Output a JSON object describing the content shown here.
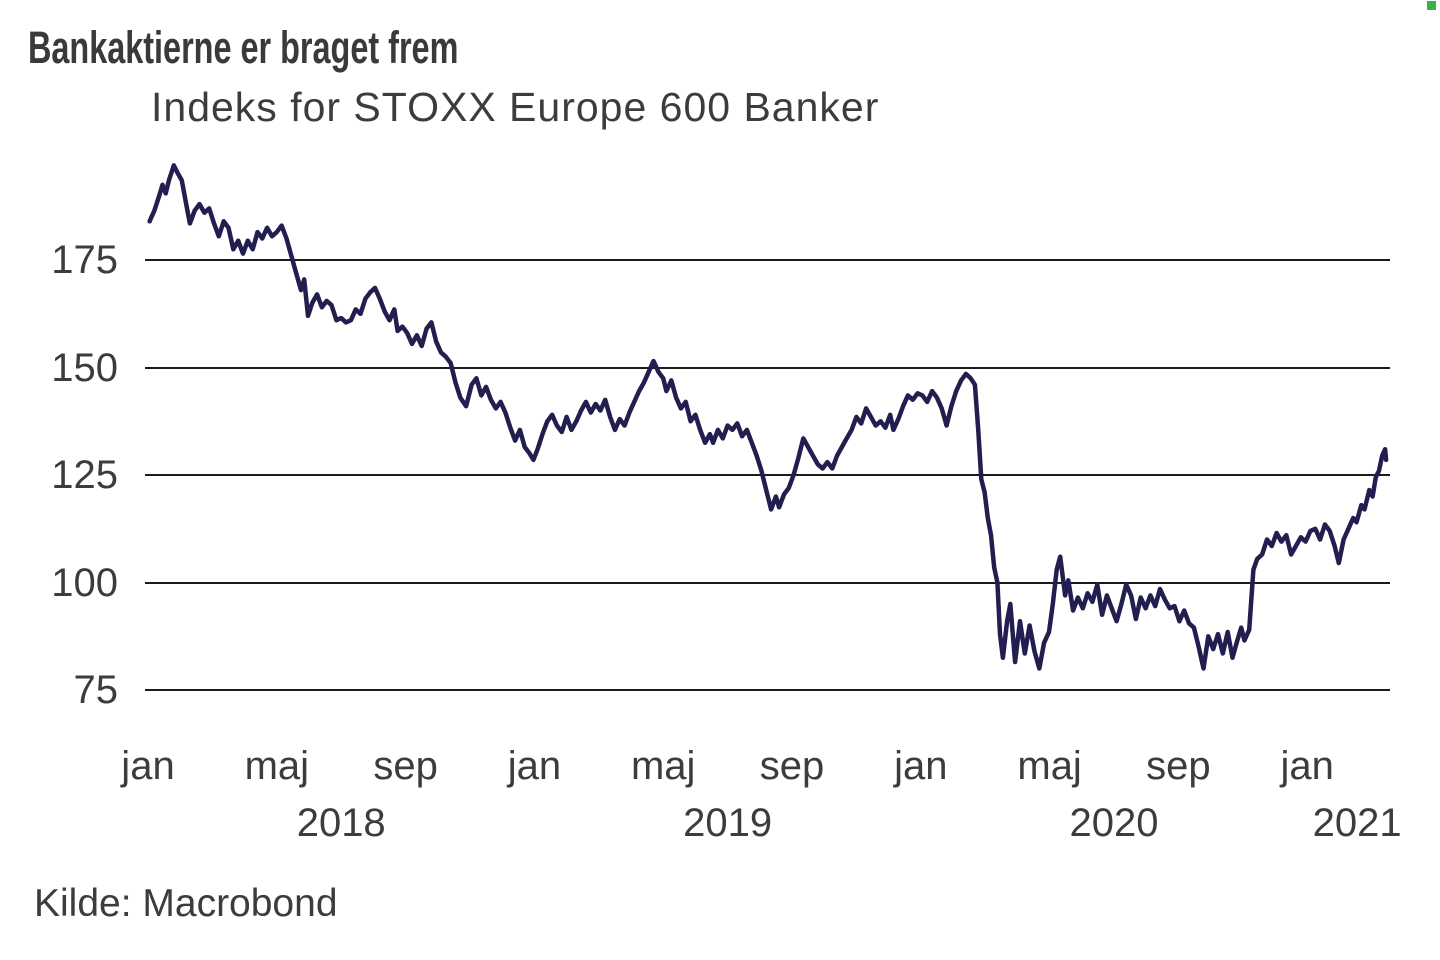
{
  "colors": {
    "background": "#ffffff",
    "line": "#221e4f",
    "grid": "#1b1b1b",
    "text": "#3c3c3c",
    "corner_dot": "#3fae49"
  },
  "chart_data": {
    "type": "line",
    "title": "Bankaktierne er braget frem",
    "subtitle": "Indeks for STOXX Europe 600 Banker",
    "source": "Kilde: Macrobond",
    "xlabel": "",
    "ylabel": "",
    "grid": "horizontal-only",
    "legend": "none",
    "x_unit": "months since 2018-01-01",
    "x_start": "2018-01",
    "x_end": "2021-03",
    "x_range_months": [
      0,
      38.45
    ],
    "ylim": [
      75,
      200
    ],
    "y_ticks": [
      175,
      150,
      125,
      100,
      75
    ],
    "x_ticks": [
      {
        "label": "jan",
        "m": 0
      },
      {
        "label": "maj",
        "m": 4
      },
      {
        "label": "sep",
        "m": 8
      },
      {
        "label": "jan",
        "m": 12
      },
      {
        "label": "maj",
        "m": 16
      },
      {
        "label": "sep",
        "m": 20
      },
      {
        "label": "jan",
        "m": 24
      },
      {
        "label": "maj",
        "m": 28
      },
      {
        "label": "sep",
        "m": 32
      },
      {
        "label": "jan",
        "m": 36
      }
    ],
    "year_labels": [
      {
        "label": "2018",
        "m": 6
      },
      {
        "label": "2019",
        "m": 18
      },
      {
        "label": "2020",
        "m": 30
      },
      {
        "label": "2021",
        "m": 37.55
      }
    ],
    "series": [
      {
        "name": "STOXX Europe 600 Banker (indeks)",
        "color": "#221e4f",
        "points": [
          [
            0.05,
            184
          ],
          [
            0.2,
            186.5
          ],
          [
            0.35,
            190
          ],
          [
            0.45,
            192.5
          ],
          [
            0.55,
            190.5
          ],
          [
            0.65,
            193.5
          ],
          [
            0.8,
            197
          ],
          [
            0.9,
            195.5
          ],
          [
            1.05,
            193.5
          ],
          [
            1.2,
            187.5
          ],
          [
            1.3,
            183.5
          ],
          [
            1.45,
            186.5
          ],
          [
            1.6,
            188
          ],
          [
            1.75,
            186
          ],
          [
            1.9,
            187
          ],
          [
            2.05,
            183.5
          ],
          [
            2.2,
            180.5
          ],
          [
            2.35,
            184
          ],
          [
            2.5,
            182.5
          ],
          [
            2.65,
            177.5
          ],
          [
            2.8,
            179.5
          ],
          [
            2.95,
            176.5
          ],
          [
            3.1,
            179.5
          ],
          [
            3.25,
            177.5
          ],
          [
            3.4,
            181.5
          ],
          [
            3.55,
            180
          ],
          [
            3.7,
            182.5
          ],
          [
            3.85,
            180.5
          ],
          [
            4.0,
            181.5
          ],
          [
            4.15,
            183
          ],
          [
            4.3,
            180
          ],
          [
            4.45,
            176
          ],
          [
            4.6,
            172
          ],
          [
            4.75,
            168
          ],
          [
            4.85,
            170.5
          ],
          [
            4.97,
            162
          ],
          [
            5.1,
            165
          ],
          [
            5.25,
            167
          ],
          [
            5.4,
            164
          ],
          [
            5.55,
            165.5
          ],
          [
            5.7,
            164.5
          ],
          [
            5.85,
            161
          ],
          [
            6.0,
            161.5
          ],
          [
            6.15,
            160.5
          ],
          [
            6.3,
            161
          ],
          [
            6.45,
            163.5
          ],
          [
            6.6,
            162.5
          ],
          [
            6.75,
            166
          ],
          [
            6.9,
            167.5
          ],
          [
            7.05,
            168.5
          ],
          [
            7.2,
            166
          ],
          [
            7.35,
            163
          ],
          [
            7.5,
            161
          ],
          [
            7.65,
            163.5
          ],
          [
            7.75,
            158.5
          ],
          [
            7.9,
            159.5
          ],
          [
            8.05,
            158
          ],
          [
            8.2,
            155.5
          ],
          [
            8.35,
            157.5
          ],
          [
            8.5,
            155
          ],
          [
            8.65,
            159
          ],
          [
            8.8,
            160.5
          ],
          [
            8.95,
            156
          ],
          [
            9.1,
            153.5
          ],
          [
            9.25,
            152.5
          ],
          [
            9.4,
            151
          ],
          [
            9.55,
            146.5
          ],
          [
            9.7,
            143
          ],
          [
            9.88,
            141
          ],
          [
            10.05,
            146
          ],
          [
            10.2,
            147.5
          ],
          [
            10.35,
            143.5
          ],
          [
            10.5,
            145.5
          ],
          [
            10.65,
            142.5
          ],
          [
            10.8,
            140.5
          ],
          [
            10.95,
            142
          ],
          [
            11.1,
            139.5
          ],
          [
            11.25,
            136
          ],
          [
            11.4,
            133
          ],
          [
            11.55,
            135.5
          ],
          [
            11.7,
            131.5
          ],
          [
            11.85,
            130
          ],
          [
            11.97,
            128.5
          ],
          [
            12.1,
            131
          ],
          [
            12.25,
            134.5
          ],
          [
            12.4,
            137.5
          ],
          [
            12.55,
            139
          ],
          [
            12.7,
            136.5
          ],
          [
            12.85,
            135
          ],
          [
            13.0,
            138.5
          ],
          [
            13.15,
            135.5
          ],
          [
            13.3,
            137.5
          ],
          [
            13.45,
            140
          ],
          [
            13.6,
            142
          ],
          [
            13.75,
            139.5
          ],
          [
            13.9,
            141.5
          ],
          [
            14.05,
            140
          ],
          [
            14.2,
            142.5
          ],
          [
            14.35,
            138.5
          ],
          [
            14.5,
            135.5
          ],
          [
            14.65,
            138
          ],
          [
            14.8,
            136.5
          ],
          [
            14.95,
            139.5
          ],
          [
            15.1,
            142
          ],
          [
            15.25,
            144.5
          ],
          [
            15.4,
            146.5
          ],
          [
            15.55,
            149
          ],
          [
            15.7,
            151.5
          ],
          [
            15.85,
            149
          ],
          [
            16.0,
            147.5
          ],
          [
            16.1,
            144.5
          ],
          [
            16.25,
            147
          ],
          [
            16.4,
            143
          ],
          [
            16.55,
            140.5
          ],
          [
            16.7,
            142
          ],
          [
            16.85,
            137.5
          ],
          [
            17.0,
            139
          ],
          [
            17.15,
            135.5
          ],
          [
            17.3,
            132.5
          ],
          [
            17.45,
            134.5
          ],
          [
            17.55,
            132.5
          ],
          [
            17.7,
            135.5
          ],
          [
            17.85,
            133.5
          ],
          [
            18.0,
            136.5
          ],
          [
            18.15,
            135.5
          ],
          [
            18.3,
            137
          ],
          [
            18.45,
            134
          ],
          [
            18.6,
            135.5
          ],
          [
            18.75,
            132.5
          ],
          [
            18.9,
            129.5
          ],
          [
            19.05,
            126
          ],
          [
            19.2,
            121.5
          ],
          [
            19.35,
            117
          ],
          [
            19.5,
            120
          ],
          [
            19.6,
            117.5
          ],
          [
            19.75,
            120.5
          ],
          [
            19.9,
            122
          ],
          [
            20.05,
            125
          ],
          [
            20.2,
            129
          ],
          [
            20.35,
            133.5
          ],
          [
            20.5,
            131.5
          ],
          [
            20.65,
            129.5
          ],
          [
            20.8,
            127.5
          ],
          [
            20.95,
            126.5
          ],
          [
            21.1,
            128
          ],
          [
            21.25,
            126.5
          ],
          [
            21.4,
            129.5
          ],
          [
            21.55,
            131.5
          ],
          [
            21.7,
            133.5
          ],
          [
            21.85,
            135.5
          ],
          [
            22.0,
            138.5
          ],
          [
            22.15,
            137
          ],
          [
            22.3,
            140.5
          ],
          [
            22.45,
            138.5
          ],
          [
            22.6,
            136.5
          ],
          [
            22.75,
            137.5
          ],
          [
            22.9,
            136
          ],
          [
            23.05,
            139
          ],
          [
            23.15,
            135.5
          ],
          [
            23.3,
            138
          ],
          [
            23.45,
            141
          ],
          [
            23.6,
            143.5
          ],
          [
            23.75,
            142.5
          ],
          [
            23.9,
            144
          ],
          [
            24.05,
            143.5
          ],
          [
            24.2,
            142
          ],
          [
            24.35,
            144.5
          ],
          [
            24.5,
            143
          ],
          [
            24.65,
            140.5
          ],
          [
            24.8,
            136.5
          ],
          [
            24.95,
            141
          ],
          [
            25.1,
            144.5
          ],
          [
            25.25,
            147
          ],
          [
            25.4,
            148.5
          ],
          [
            25.55,
            147.5
          ],
          [
            25.68,
            146
          ],
          [
            25.78,
            136
          ],
          [
            25.88,
            124
          ],
          [
            25.98,
            121
          ],
          [
            26.08,
            115
          ],
          [
            26.18,
            111
          ],
          [
            26.28,
            103.5
          ],
          [
            26.38,
            100
          ],
          [
            26.46,
            88
          ],
          [
            26.55,
            82.5
          ],
          [
            26.68,
            91
          ],
          [
            26.78,
            95
          ],
          [
            26.93,
            81.5
          ],
          [
            27.08,
            91
          ],
          [
            27.23,
            83.5
          ],
          [
            27.38,
            90
          ],
          [
            27.53,
            84
          ],
          [
            27.68,
            80
          ],
          [
            27.83,
            86
          ],
          [
            27.98,
            88.5
          ],
          [
            28.1,
            95
          ],
          [
            28.22,
            103
          ],
          [
            28.33,
            106
          ],
          [
            28.48,
            97
          ],
          [
            28.58,
            100.5
          ],
          [
            28.73,
            93.5
          ],
          [
            28.88,
            96.5
          ],
          [
            29.03,
            94
          ],
          [
            29.18,
            97.5
          ],
          [
            29.33,
            95.5
          ],
          [
            29.48,
            99.5
          ],
          [
            29.63,
            92.5
          ],
          [
            29.78,
            97
          ],
          [
            29.93,
            94
          ],
          [
            30.08,
            91
          ],
          [
            30.23,
            95
          ],
          [
            30.38,
            99.5
          ],
          [
            30.53,
            97
          ],
          [
            30.68,
            91.5
          ],
          [
            30.83,
            96.5
          ],
          [
            30.98,
            94
          ],
          [
            31.13,
            97
          ],
          [
            31.28,
            94.5
          ],
          [
            31.43,
            98.5
          ],
          [
            31.58,
            96
          ],
          [
            31.73,
            94
          ],
          [
            31.88,
            94.5
          ],
          [
            32.03,
            91
          ],
          [
            32.18,
            93.5
          ],
          [
            32.33,
            90.5
          ],
          [
            32.48,
            89.5
          ],
          [
            32.63,
            85
          ],
          [
            32.78,
            80
          ],
          [
            32.93,
            87.5
          ],
          [
            33.08,
            84.5
          ],
          [
            33.23,
            88
          ],
          [
            33.38,
            83.5
          ],
          [
            33.53,
            88.5
          ],
          [
            33.68,
            82.5
          ],
          [
            33.83,
            86.5
          ],
          [
            33.95,
            89.5
          ],
          [
            34.05,
            86.5
          ],
          [
            34.2,
            89
          ],
          [
            34.33,
            103
          ],
          [
            34.45,
            105.5
          ],
          [
            34.6,
            106.5
          ],
          [
            34.75,
            110
          ],
          [
            34.9,
            108.5
          ],
          [
            35.05,
            111.5
          ],
          [
            35.2,
            109.5
          ],
          [
            35.35,
            111
          ],
          [
            35.5,
            106.5
          ],
          [
            35.65,
            108.5
          ],
          [
            35.8,
            110.5
          ],
          [
            35.95,
            109.5
          ],
          [
            36.1,
            112
          ],
          [
            36.25,
            112.5
          ],
          [
            36.4,
            110
          ],
          [
            36.55,
            113.5
          ],
          [
            36.7,
            112
          ],
          [
            36.85,
            108.5
          ],
          [
            36.98,
            104.5
          ],
          [
            37.13,
            110
          ],
          [
            37.28,
            112.5
          ],
          [
            37.43,
            115
          ],
          [
            37.53,
            114
          ],
          [
            37.68,
            118
          ],
          [
            37.78,
            117
          ],
          [
            37.93,
            121.5
          ],
          [
            38.03,
            120
          ],
          [
            38.13,
            124.5
          ],
          [
            38.23,
            126
          ],
          [
            38.33,
            129.5
          ],
          [
            38.42,
            131
          ],
          [
            38.45,
            128.5
          ]
        ]
      }
    ]
  }
}
